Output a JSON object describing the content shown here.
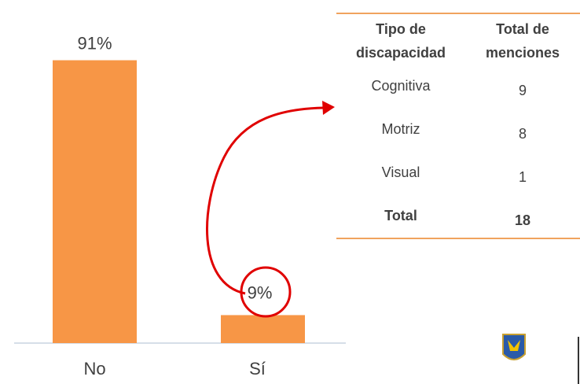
{
  "chart_data": {
    "type": "bar",
    "categories": [
      "No",
      "Sí"
    ],
    "values": [
      91,
      9
    ],
    "value_labels": [
      "91%",
      "9%"
    ],
    "color": "#f79646"
  },
  "table": {
    "header": [
      "Tipo de discapacidad",
      "Total de menciones"
    ],
    "rows": [
      [
        "Cognitiva",
        9
      ],
      [
        "Motriz",
        8
      ],
      [
        "Visual",
        1
      ],
      [
        "Total",
        18
      ]
    ]
  }
}
